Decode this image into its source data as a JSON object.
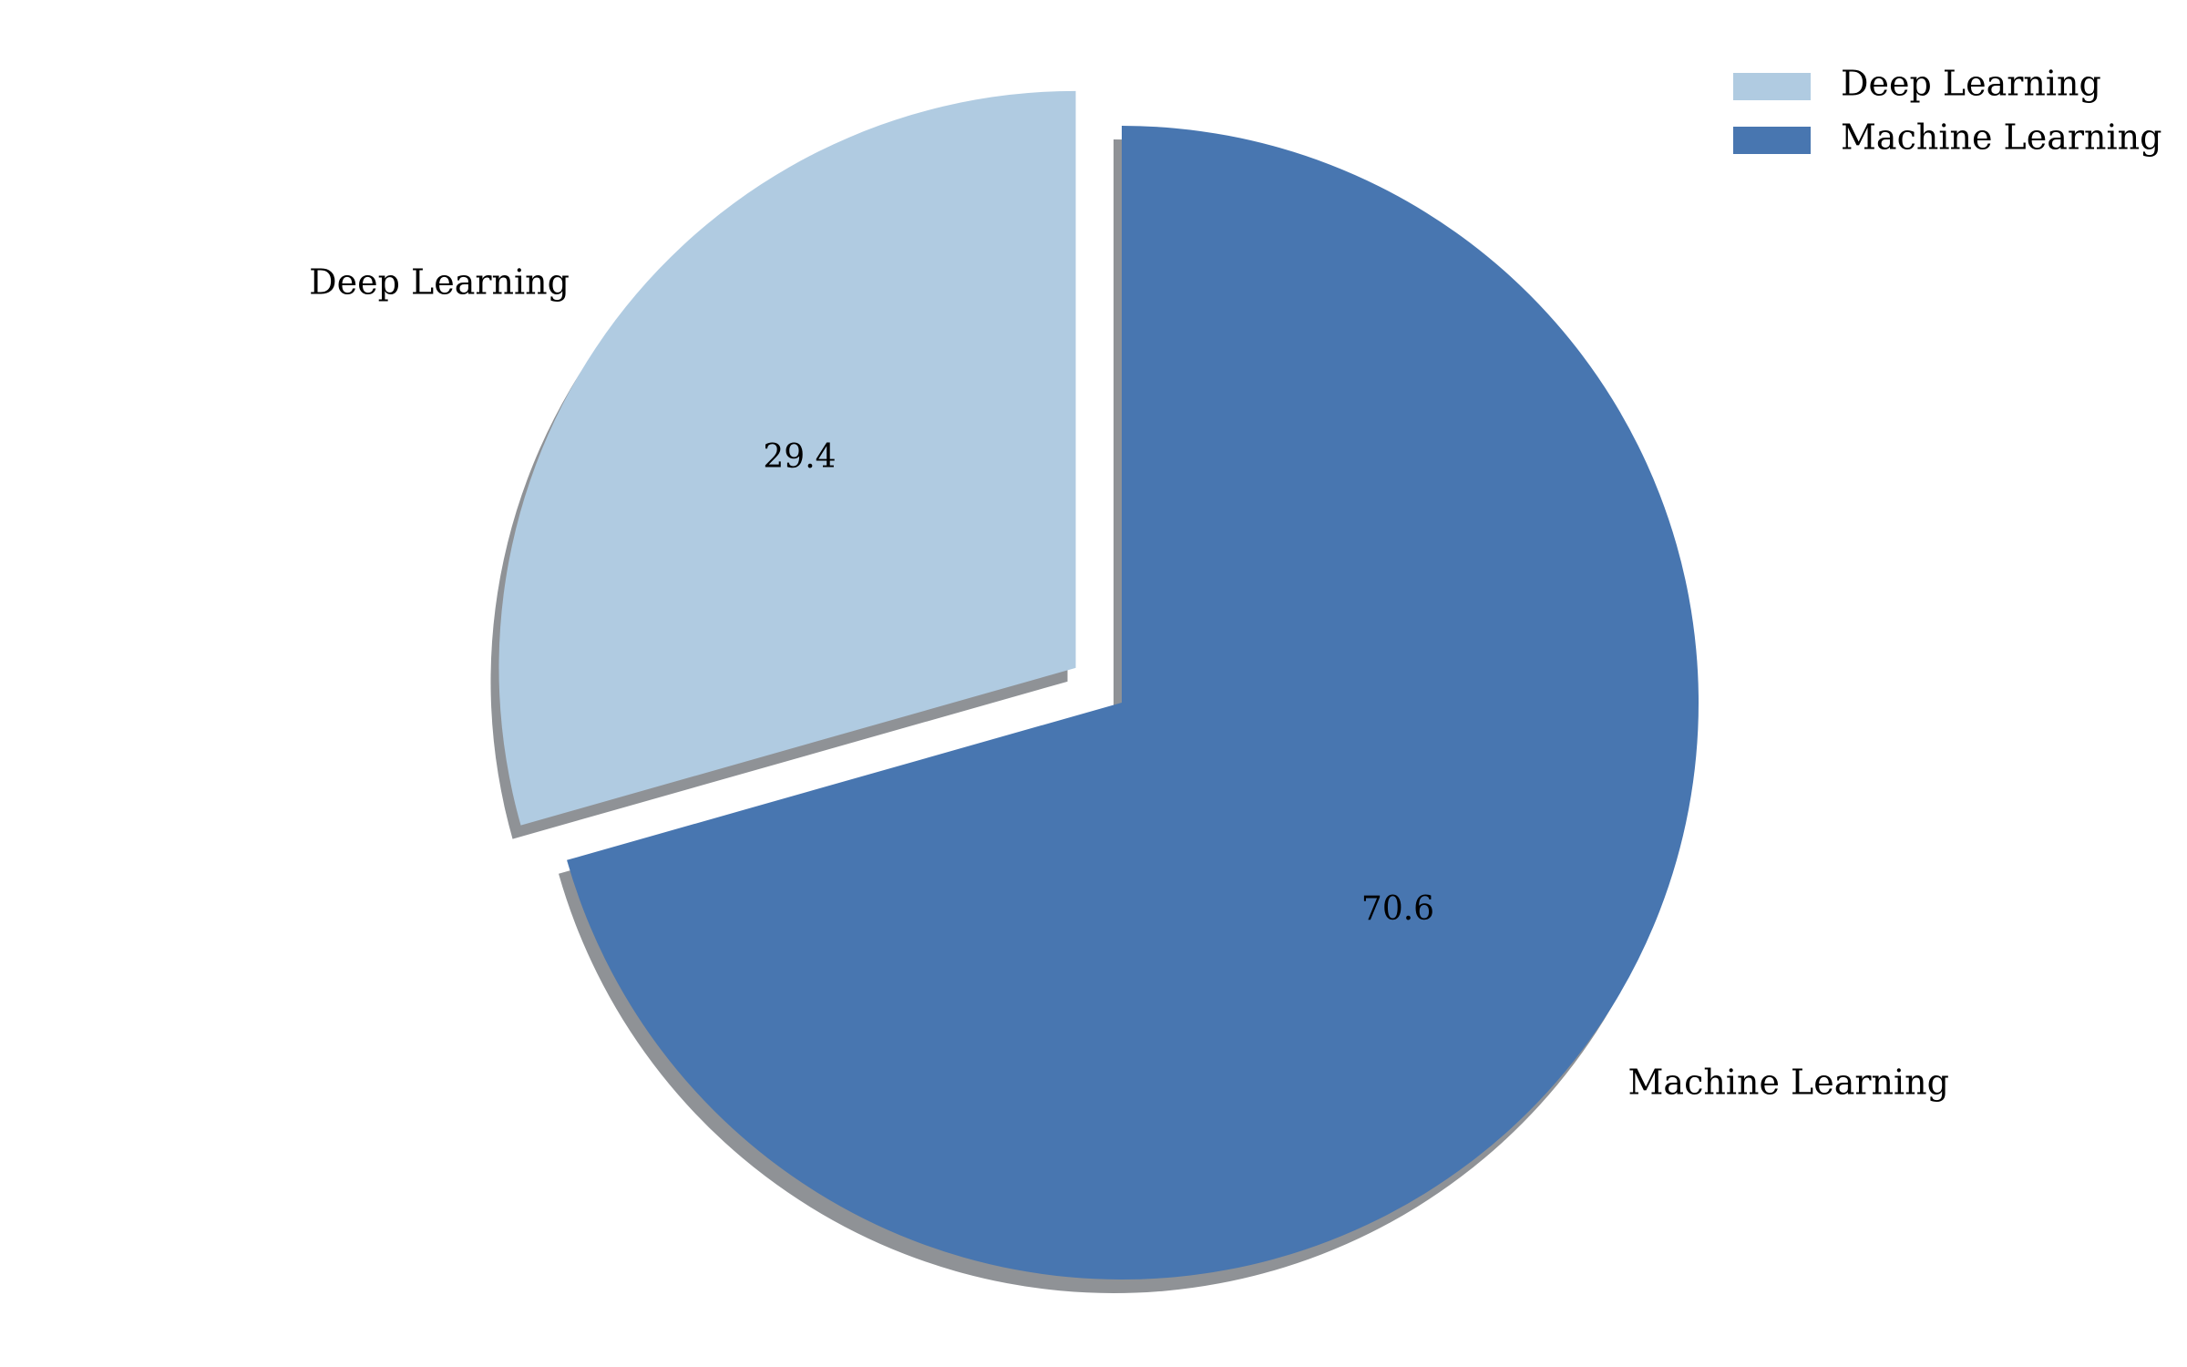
{
  "chart_data": {
    "type": "pie",
    "title": "",
    "slices": [
      {
        "label": "Deep Learning",
        "value": 29.4,
        "value_label": "29.4",
        "color": "#b0cbe1",
        "exploded": true
      },
      {
        "label": "Machine Learning",
        "value": 70.6,
        "value_label": "70.6",
        "color": "#4876b0",
        "exploded": false
      }
    ],
    "start_angle_deg": 90,
    "direction": "counterclockwise",
    "shadow": true,
    "shadow_color": "#8f9296",
    "legend": {
      "placement": "top-right",
      "entries": [
        "Deep Learning",
        "Machine Learning"
      ]
    }
  }
}
